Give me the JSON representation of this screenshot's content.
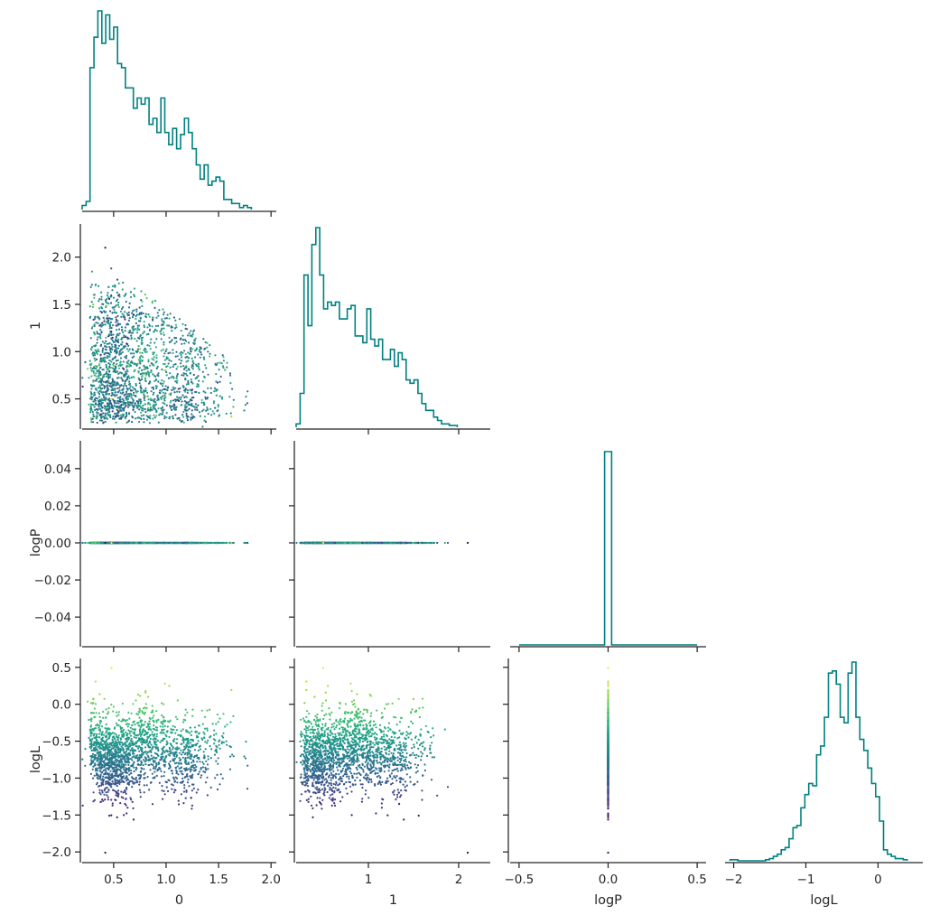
{
  "chart_data": {
    "type": "corner",
    "variables": [
      "0",
      "1",
      "logP",
      "logL"
    ],
    "histogram_color": "#008080",
    "point_colormap": "viridis",
    "color_variable": "logL",
    "grid": false,
    "axes": {
      "0": {
        "label": "0",
        "range": [
          0.2,
          2.05
        ],
        "ticks": [
          0.5,
          1.0,
          1.5,
          2.0
        ],
        "tick_labels": [
          "0.5",
          "1.0",
          "1.5",
          "2.0"
        ]
      },
      "1": {
        "label": "1",
        "range": [
          0.2,
          2.35
        ],
        "ticks": [
          1,
          2
        ],
        "tick_labels": [
          "1",
          "2"
        ]
      },
      "logP": {
        "label": "logP",
        "range": [
          -0.055,
          0.055
        ],
        "ticks": [
          -0.04,
          -0.02,
          0.0,
          0.02,
          0.04
        ],
        "tick_labels": [
          "−0.04",
          "−0.02",
          "0.00",
          "0.02",
          "0.04"
        ]
      },
      "logP_diag": {
        "label": "logP",
        "range": [
          -0.55,
          0.55
        ],
        "ticks": [
          -0.5,
          0.0,
          0.5
        ],
        "tick_labels": [
          "−0.5",
          "0.0",
          "0.5"
        ]
      },
      "logL": {
        "label": "logL",
        "range": [
          -2.12,
          0.62
        ],
        "ticks": [
          -2.0,
          -1.5,
          -1.0,
          -0.5,
          0.0,
          0.5
        ],
        "tick_labels": [
          "−2.0",
          "−1.5",
          "−1.0",
          "−0.5",
          "0.0",
          "0.5"
        ]
      },
      "logL_diag": {
        "label": "logL",
        "range": [
          -2.12,
          0.62
        ],
        "ticks": [
          -2,
          -1,
          0
        ],
        "tick_labels": [
          "−2",
          "−1",
          "0"
        ]
      },
      "row1_y": {
        "label": "1",
        "range": [
          0.2,
          2.35
        ],
        "ticks": [
          0.5,
          1.0,
          1.5,
          2.0
        ],
        "tick_labels": [
          "0.5",
          "1.0",
          "1.5",
          "2.0"
        ]
      }
    },
    "histograms": {
      "0": {
        "edges_start": 0.2,
        "bin_width": 0.0375,
        "counts": [
          2,
          4,
          70,
          85,
          98,
          82,
          96,
          84,
          90,
          72,
          70,
          60,
          60,
          50,
          55,
          52,
          55,
          42,
          45,
          38,
          55,
          38,
          32,
          40,
          30,
          37,
          45,
          38,
          30,
          22,
          15,
          22,
          12,
          14,
          16,
          14,
          5,
          5,
          3,
          3,
          1,
          2,
          1
        ]
      },
      "1": {
        "edges_start": 0.2,
        "bin_width": 0.0435,
        "counts": [
          2,
          20,
          90,
          60,
          108,
          118,
          90,
          70,
          74,
          72,
          74,
          64,
          64,
          70,
          72,
          54,
          54,
          50,
          70,
          52,
          48,
          52,
          40,
          40,
          46,
          36,
          44,
          40,
          28,
          26,
          28,
          20,
          14,
          10,
          10,
          6,
          4,
          2,
          2,
          1,
          1
        ]
      },
      "logP": {
        "bin_left": -0.02,
        "bin_right": 0.02,
        "count": 1800,
        "baseline_range": [
          -0.5,
          0.5
        ]
      },
      "logL": {
        "edges_start": -2.05,
        "bin_width": 0.0545,
        "counts": [
          1,
          1,
          0,
          0,
          0,
          0,
          0,
          0,
          0,
          1,
          2,
          4,
          6,
          10,
          12,
          20,
          30,
          32,
          48,
          60,
          70,
          68,
          96,
          104,
          130,
          170,
          172,
          160,
          130,
          125,
          170,
          180,
          130,
          110,
          100,
          84,
          70,
          58,
          36,
          10,
          6,
          4,
          2,
          2,
          1
        ]
      }
    },
    "scatter_points": 1800
  }
}
